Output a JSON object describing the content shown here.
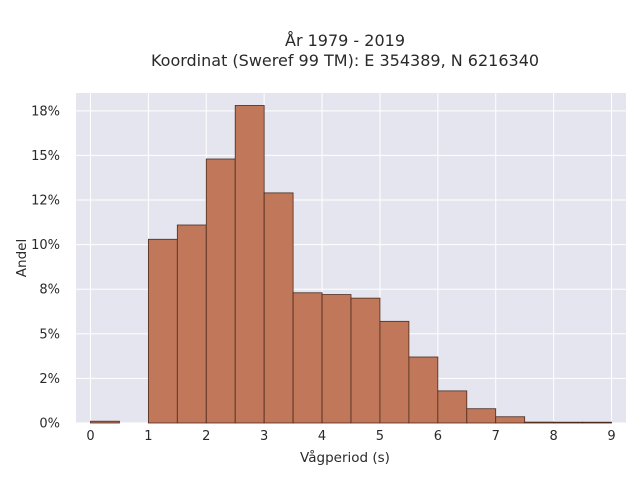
{
  "chart_data": {
    "type": "bar",
    "title_line1": "År 1979 - 2019",
    "title_line2": "Koordinat (Sweref 99 TM): E 354389, N 6216340",
    "xlabel": "Vågperiod (s)",
    "ylabel": "Andel",
    "bin_width": 0.5,
    "bins": [
      {
        "x0": 0.0,
        "x1": 0.5,
        "value": 0.1
      },
      {
        "x0": 0.5,
        "x1": 1.0,
        "value": 0.0
      },
      {
        "x0": 1.0,
        "x1": 1.5,
        "value": 10.3
      },
      {
        "x0": 1.5,
        "x1": 2.0,
        "value": 11.1
      },
      {
        "x0": 2.0,
        "x1": 2.5,
        "value": 14.8
      },
      {
        "x0": 2.5,
        "x1": 3.0,
        "value": 17.8
      },
      {
        "x0": 3.0,
        "x1": 3.5,
        "value": 12.9
      },
      {
        "x0": 3.5,
        "x1": 4.0,
        "value": 7.3
      },
      {
        "x0": 4.0,
        "x1": 4.5,
        "value": 7.2
      },
      {
        "x0": 4.5,
        "x1": 5.0,
        "value": 7.0
      },
      {
        "x0": 5.0,
        "x1": 5.5,
        "value": 5.7
      },
      {
        "x0": 5.5,
        "x1": 6.0,
        "value": 3.7
      },
      {
        "x0": 6.0,
        "x1": 6.5,
        "value": 1.8
      },
      {
        "x0": 6.5,
        "x1": 7.0,
        "value": 0.8
      },
      {
        "x0": 7.0,
        "x1": 7.5,
        "value": 0.35
      },
      {
        "x0": 7.5,
        "x1": 8.0,
        "value": 0.05
      },
      {
        "x0": 8.0,
        "x1": 8.5,
        "value": 0.03
      },
      {
        "x0": 8.5,
        "x1": 9.0,
        "value": 0.02
      }
    ],
    "xlim": [
      -0.25,
      9.25
    ],
    "ylim": [
      0,
      18.5
    ],
    "x_ticks": [
      {
        "value": 0,
        "label": "0"
      },
      {
        "value": 1,
        "label": "1"
      },
      {
        "value": 2,
        "label": "2"
      },
      {
        "value": 3,
        "label": "3"
      },
      {
        "value": 4,
        "label": "4"
      },
      {
        "value": 5,
        "label": "5"
      },
      {
        "value": 6,
        "label": "6"
      },
      {
        "value": 7,
        "label": "7"
      },
      {
        "value": 8,
        "label": "8"
      },
      {
        "value": 9,
        "label": "9"
      }
    ],
    "y_ticks": [
      {
        "value": 0,
        "label": "0%"
      },
      {
        "value": 2.5,
        "label": "2%"
      },
      {
        "value": 5,
        "label": "5%"
      },
      {
        "value": 7.5,
        "label": "8%"
      },
      {
        "value": 10,
        "label": "10%"
      },
      {
        "value": 12.5,
        "label": "12%"
      },
      {
        "value": 15,
        "label": "15%"
      },
      {
        "value": 17.5,
        "label": "18%"
      }
    ],
    "grid": true,
    "colors": {
      "bar_fill": "#c1785a",
      "bar_stroke": "#4a2a1c",
      "plot_bg": "#e5e5ef",
      "grid": "#ffffff"
    }
  }
}
